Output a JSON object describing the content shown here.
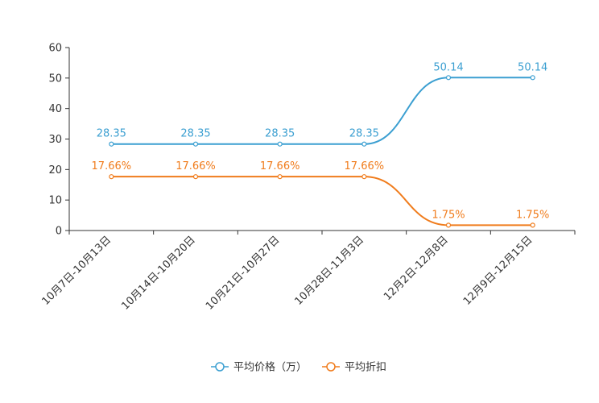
{
  "chart_data": {
    "type": "line",
    "title": "",
    "xlabel": "",
    "ylabel": "",
    "categories": [
      "10月7日-10月13日",
      "10月14日-10月20日",
      "10月21日-10月27日",
      "10月28日-11月3日",
      "12月2日-12月8日",
      "12月9日-12月15日"
    ],
    "ylim": [
      0,
      60
    ],
    "yticks": [
      "0",
      "10",
      "20",
      "30",
      "40",
      "50",
      "60"
    ],
    "series": [
      {
        "name": "平均价格（万）",
        "color": "#3b9fd1",
        "values": [
          28.35,
          28.35,
          28.35,
          28.35,
          50.14,
          50.14
        ],
        "labels": [
          "28.35",
          "28.35",
          "28.35",
          "28.35",
          "50.14",
          "50.14"
        ]
      },
      {
        "name": "平均折扣",
        "color": "#f07c1c",
        "values": [
          17.66,
          17.66,
          17.66,
          17.66,
          1.75,
          1.75
        ],
        "labels": [
          "17.66%",
          "17.66%",
          "17.66%",
          "17.66%",
          "1.75%",
          "1.75%"
        ]
      }
    ],
    "legend_position": "bottom-center",
    "grid": false
  }
}
